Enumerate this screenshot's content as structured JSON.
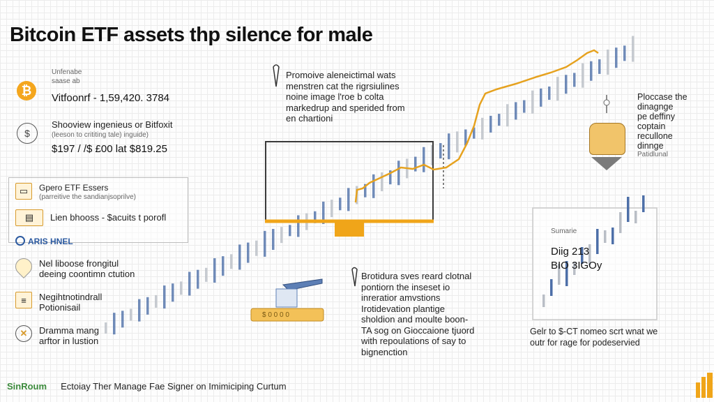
{
  "title": "Bitcoin ETF assets thp silence for male",
  "top_block": {
    "label1": "Unfenabe",
    "label2": "saase ab",
    "line1": "Vitfoonrf - 1,59,420. 3784",
    "line2": "Shooview ingenieus or Bitfoxit",
    "line3": "(leeson to crititing tale) inguide)",
    "line4": "$197 / /$ £00 lat $819.25"
  },
  "left_panel": {
    "item1": "Gpero ETF Essers",
    "item1_sub": "(parreitive the sandianjsoprilve)",
    "item2": "Lien bhooss  -  $acuits t porofl",
    "item3": "ARIS HNEL",
    "item4a": "Nel liboose frongitul",
    "item4b": "deeing coontimn ctution",
    "item5a": "Negihtnotindrall",
    "item5b": "Potionisail",
    "item6a": "Dramma mang",
    "item6b": "arftor in lustion"
  },
  "callouts": {
    "top_center": [
      "Promoive aleneictimal wats",
      "menstren cat the rigrsiulines",
      "noine image l'roe b colta",
      "markedrup and sperided from",
      "en chartioni"
    ],
    "right": [
      "Ploccase the",
      "dinagnge",
      "pe deffiny",
      "coptain",
      "recullone",
      "dinnge",
      "Patidlunal"
    ],
    "bottom_center": [
      "Brotidura sves reard clotnal",
      "pontiorn the inseset io",
      "inreratior amvstions",
      "Irotidevation plantige",
      "sholdion and moulte boon-",
      "TA sog on Gioccaione tjuord",
      "with repoulations of say to",
      "bignenction"
    ],
    "inset_label1": "Sumarie",
    "inset_label2": "Diig 213",
    "inset_label3": "BIO 3IGOy",
    "inset_caption": [
      "Gelr to $-CT nomeo scrt wnat we",
      "outr for rage for podeservied"
    ],
    "chip_label": "$ 0 0 0 0"
  },
  "footer": {
    "brand": "SinRoum",
    "text": "Ectoiay Ther Manage Fae Signer on Imimiciping Curtum"
  },
  "colors": {
    "accent": "#f4a61d",
    "bar_blue": "#4d6fa8",
    "bar_grey": "#b9bec6",
    "line_orange": "#e6a21f"
  }
}
